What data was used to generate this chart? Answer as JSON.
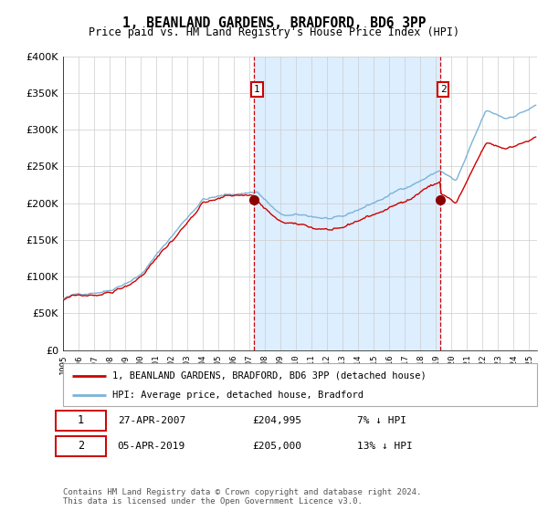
{
  "title": "1, BEANLAND GARDENS, BRADFORD, BD6 3PP",
  "subtitle": "Price paid vs. HM Land Registry's House Price Index (HPI)",
  "legend_line1": "1, BEANLAND GARDENS, BRADFORD, BD6 3PP (detached house)",
  "legend_line2": "HPI: Average price, detached house, Bradford",
  "purchase1_date": "27-APR-2007",
  "purchase1_price": 204995,
  "purchase1_label": "1",
  "purchase1_pct": "7% ↓ HPI",
  "purchase2_date": "05-APR-2019",
  "purchase2_price": 205000,
  "purchase2_label": "2",
  "purchase2_pct": "13% ↓ HPI",
  "footer": "Contains HM Land Registry data © Crown copyright and database right 2024.\nThis data is licensed under the Open Government Licence v3.0.",
  "ylim": [
    0,
    400000
  ],
  "yticks": [
    0,
    50000,
    100000,
    150000,
    200000,
    250000,
    300000,
    350000,
    400000
  ],
  "hpi_color": "#7ab3d8",
  "property_color": "#cc0000",
  "marker_color": "#8b0000",
  "vline_color": "#cc0000",
  "shade_color": "#ddeeff",
  "background_color": "#ffffff",
  "grid_color": "#cccccc",
  "purchase1_year": 2007.29,
  "purchase2_year": 2019.25,
  "xstart": 1995,
  "xend": 2025
}
